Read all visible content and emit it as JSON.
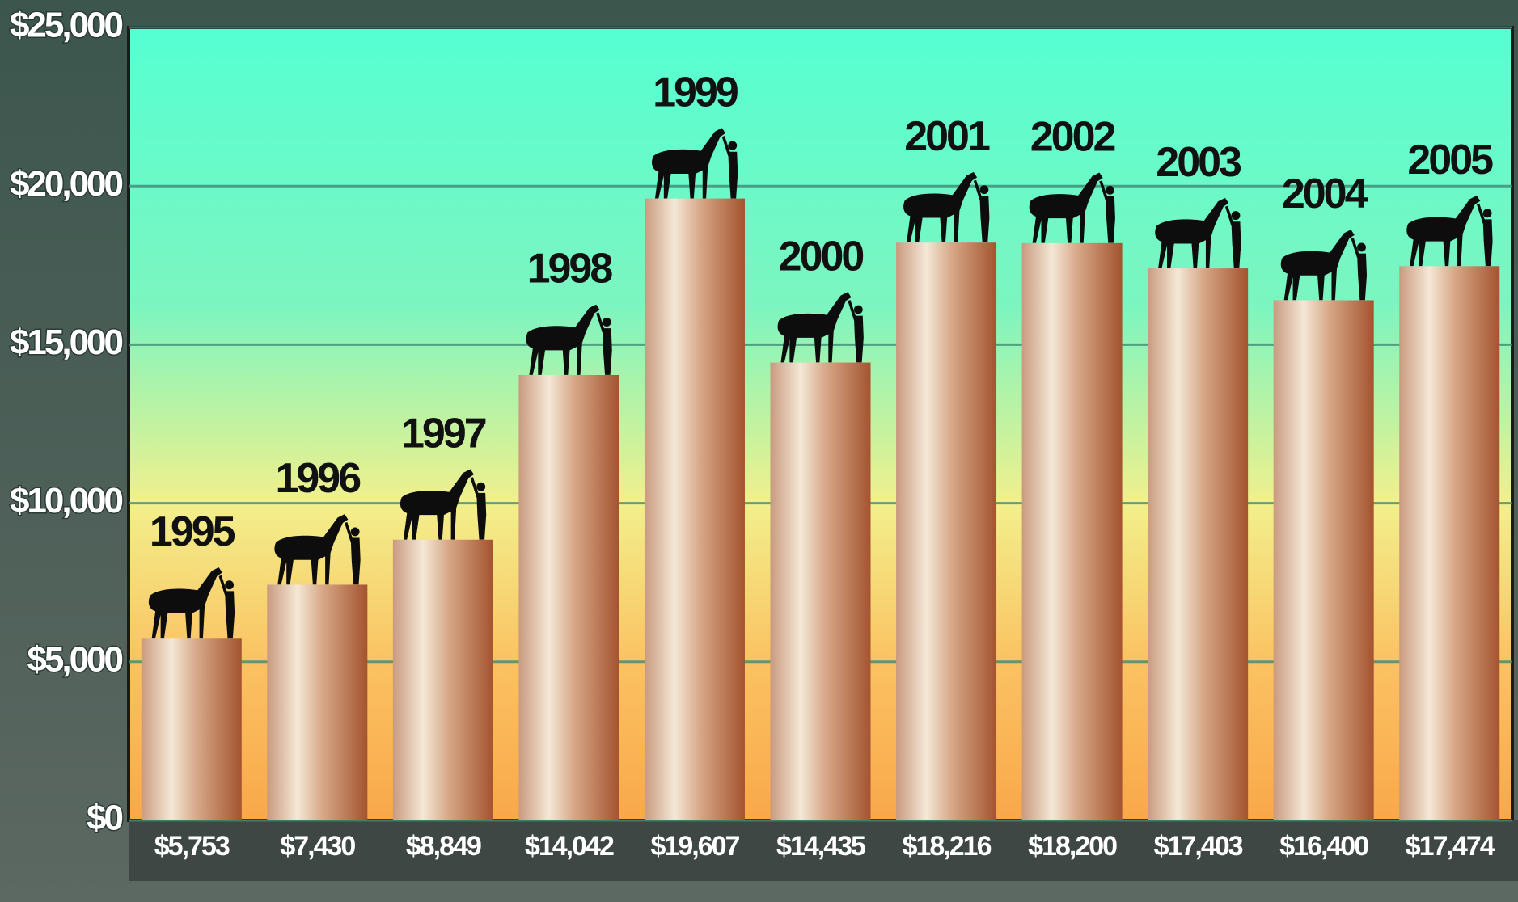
{
  "chart_data": {
    "type": "bar",
    "categories": [
      "1995",
      "1996",
      "1997",
      "1998",
      "1999",
      "2000",
      "2001",
      "2002",
      "2003",
      "2004",
      "2005"
    ],
    "values": [
      5753,
      7430,
      8849,
      14042,
      19607,
      14435,
      18216,
      18200,
      17403,
      16400,
      17474
    ],
    "value_labels": [
      "$5,753",
      "$7,430",
      "$8,849",
      "$14,042",
      "$19,607",
      "$14,435",
      "$18,216",
      "$18,200",
      "$17,403",
      "$16,400",
      "$17,474"
    ],
    "color": "#a4532f",
    "ylim": [
      0,
      25000
    ],
    "yticks": [
      {
        "value": 0,
        "label": "$0"
      },
      {
        "value": 5000,
        "label": "$5,000"
      },
      {
        "value": 10000,
        "label": "$10,000"
      },
      {
        "value": 15000,
        "label": "$15,000"
      },
      {
        "value": 20000,
        "label": "$20,000"
      },
      {
        "value": 25000,
        "label": "$25,000"
      }
    ],
    "grid": true
  }
}
